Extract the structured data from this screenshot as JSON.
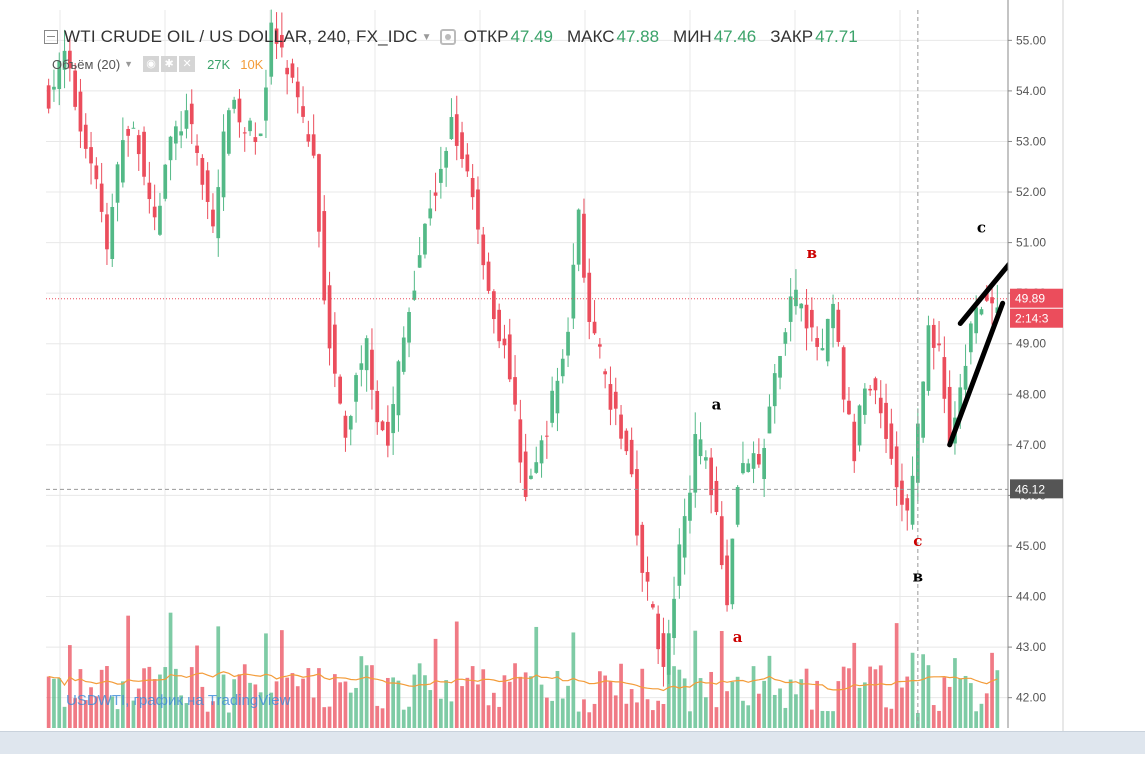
{
  "header": {
    "symbol": "WTI CRUDE OIL / US DOLLAR, 240, FX_IDC",
    "open_label": "ОТКР",
    "open_value": "47.49",
    "high_label": "МАКС",
    "high_value": "47.88",
    "low_label": "МИН",
    "low_value": "47.46",
    "close_label": "ЗАКР",
    "close_value": "47.71"
  },
  "volume": {
    "label": "Объём (20)",
    "v1": "27K",
    "v2": "10K"
  },
  "watermark": "USDWTI, график на TradingView",
  "price_tags": {
    "last": "49.89",
    "countdown": "2:14:3",
    "crosshair": "46.12"
  },
  "annotations": [
    {
      "text": "c",
      "price": 51.2,
      "index": 176,
      "color": "#000000"
    },
    {
      "text": "в",
      "price": 50.7,
      "index": 144,
      "color": "#cc0000"
    },
    {
      "text": "a",
      "price": 47.7,
      "index": 126,
      "color": "#000000"
    },
    {
      "text": "a",
      "price": 43.1,
      "index": 130,
      "color": "#cc0000"
    },
    {
      "text": "c",
      "price": 45.0,
      "index": 164,
      "color": "#cc0000"
    },
    {
      "text": "в",
      "price": 44.3,
      "index": 164,
      "color": "#000000"
    }
  ],
  "colors": {
    "up": "#53b987",
    "down": "#eb4d5c",
    "vol_ma": "#f39c3a",
    "grid": "#e8e8e8",
    "text": "#333333"
  },
  "chart_data": {
    "type": "candlestick",
    "title": "WTI CRUDE OIL / US DOLLAR, 240, FX_IDC",
    "ylim": [
      41.4,
      55.6
    ],
    "y_ticks": [
      "42.00",
      "43.00",
      "44.00",
      "45.00",
      "46.00",
      "47.00",
      "48.00",
      "49.00",
      "50.00",
      "51.00",
      "52.00",
      "53.00",
      "54.00",
      "55.00"
    ],
    "price_path": [
      [
        0,
        53.9
      ],
      [
        3,
        54.7
      ],
      [
        6,
        53.3
      ],
      [
        9,
        52.3
      ],
      [
        11,
        50.8
      ],
      [
        14,
        53.2
      ],
      [
        17,
        53.0
      ],
      [
        20,
        51.3
      ],
      [
        23,
        53.0
      ],
      [
        26,
        53.5
      ],
      [
        29,
        52.3
      ],
      [
        31,
        51.3
      ],
      [
        34,
        53.8
      ],
      [
        37,
        53.2
      ],
      [
        40,
        53.2
      ],
      [
        42,
        55.2
      ],
      [
        45,
        54.4
      ],
      [
        48,
        53.3
      ],
      [
        50,
        52.8
      ],
      [
        52,
        50.0
      ],
      [
        54,
        48.3
      ],
      [
        56,
        47.1
      ],
      [
        58,
        48.3
      ],
      [
        60,
        49.0
      ],
      [
        62,
        47.6
      ],
      [
        64,
        47.0
      ],
      [
        66,
        48.5
      ],
      [
        69,
        50.3
      ],
      [
        72,
        51.8
      ],
      [
        74,
        52.3
      ],
      [
        76,
        53.5
      ],
      [
        78,
        52.8
      ],
      [
        80,
        52.0
      ],
      [
        82,
        50.7
      ],
      [
        84,
        49.5
      ],
      [
        86,
        49.0
      ],
      [
        88,
        47.6
      ],
      [
        90,
        46.1
      ],
      [
        92,
        46.6
      ],
      [
        94,
        47.4
      ],
      [
        96,
        48.3
      ],
      [
        98,
        49.3
      ],
      [
        100,
        51.7
      ],
      [
        102,
        49.3
      ],
      [
        104,
        48.7
      ],
      [
        106,
        47.8
      ],
      [
        108,
        47.2
      ],
      [
        110,
        46.5
      ],
      [
        112,
        44.4
      ],
      [
        114,
        43.8
      ],
      [
        116,
        42.5
      ],
      [
        118,
        44.0
      ],
      [
        120,
        45.6
      ],
      [
        122,
        47.0
      ],
      [
        124,
        46.8
      ],
      [
        126,
        45.7
      ],
      [
        128,
        44.0
      ],
      [
        130,
        46.4
      ],
      [
        132,
        46.7
      ],
      [
        134,
        46.5
      ],
      [
        136,
        47.6
      ],
      [
        138,
        49.0
      ],
      [
        140,
        49.8
      ],
      [
        142,
        50.0
      ],
      [
        144,
        49.1
      ],
      [
        146,
        48.8
      ],
      [
        148,
        49.7
      ],
      [
        150,
        48.0
      ],
      [
        152,
        46.8
      ],
      [
        154,
        48.3
      ],
      [
        156,
        48.0
      ],
      [
        158,
        47.3
      ],
      [
        160,
        46.2
      ],
      [
        162,
        45.6
      ],
      [
        164,
        47.3
      ],
      [
        166,
        49.3
      ],
      [
        168,
        48.8
      ],
      [
        170,
        47.1
      ],
      [
        172,
        48.0
      ],
      [
        174,
        49.3
      ],
      [
        176,
        49.9
      ],
      [
        178,
        49.6
      ]
    ],
    "candle_count": 180,
    "trendlines": [
      {
        "from": [
          172,
          49.4
        ],
        "to": [
          183,
          50.8
        ]
      },
      {
        "from": [
          170,
          47.0
        ],
        "to": [
          180,
          49.8
        ]
      }
    ],
    "last_price": 49.89,
    "crosshair_price": 46.12,
    "volume_ma_label": "Объём (20)"
  }
}
